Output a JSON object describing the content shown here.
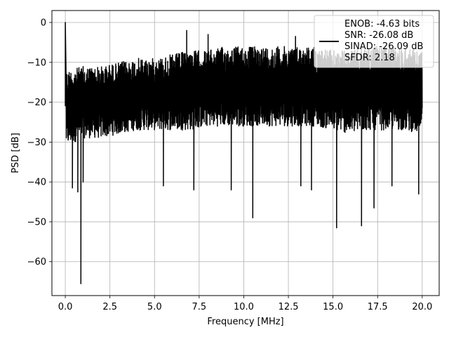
{
  "chart_data": {
    "type": "line",
    "xlabel": "Frequency [MHz]",
    "ylabel": "PSD [dB]",
    "xlim": [
      -0.75,
      20.95
    ],
    "ylim": [
      -68.5,
      3.0
    ],
    "xticks": [
      0.0,
      2.5,
      5.0,
      7.5,
      10.0,
      12.5,
      15.0,
      17.5,
      20.0
    ],
    "xtick_labels": [
      "0.0",
      "2.5",
      "5.0",
      "7.5",
      "10.0",
      "12.5",
      "15.0",
      "17.5",
      "20.0"
    ],
    "yticks": [
      0,
      -10,
      -20,
      -30,
      -40,
      -50,
      -60
    ],
    "ytick_labels": [
      "0",
      "−10",
      "−20",
      "−30",
      "−40",
      "−50",
      "−60"
    ],
    "grid": true,
    "legend_placement": "upper-right",
    "legend_lines": [
      "ENOB: -4.63 bits",
      "SNR: -26.08 dB",
      "SINAD: -26.09 dB",
      "SFDR: 2.18"
    ],
    "series": [
      {
        "color": "#000000",
        "band_envelope": {
          "x": [
            0.05,
            1.0,
            2.0,
            3.0,
            4.0,
            5.0,
            6.0,
            7.0,
            8.0,
            9.0,
            10.0,
            11.0,
            12.0,
            13.0,
            14.0,
            15.0,
            16.0,
            17.0,
            18.0,
            19.0,
            20.0
          ],
          "upper": [
            -12,
            -11,
            -11,
            -10,
            -9,
            -9,
            -8,
            -7,
            -7,
            -6,
            -6,
            -6,
            -6,
            -6,
            -6,
            -7,
            -7,
            -6,
            -6,
            -6,
            -7
          ],
          "lower": [
            -31,
            -29,
            -29,
            -28,
            -27,
            -27,
            -27,
            -27,
            -26,
            -26,
            -26,
            -26,
            -26,
            -26,
            -26,
            -27,
            -28,
            -27,
            -27,
            -27,
            -28
          ]
        },
        "peaks": [
          {
            "x": 0.0,
            "y": 0.0
          },
          {
            "x": 6.8,
            "y": -2.0
          },
          {
            "x": 8.0,
            "y": -3.0
          },
          {
            "x": 12.9,
            "y": -3.5
          }
        ],
        "dips": [
          {
            "x": 0.87,
            "y": -65.5
          },
          {
            "x": 0.7,
            "y": -42.5
          },
          {
            "x": 0.4,
            "y": -41.5
          },
          {
            "x": 1.0,
            "y": -40.0
          },
          {
            "x": 5.5,
            "y": -41.0
          },
          {
            "x": 7.2,
            "y": -42.0
          },
          {
            "x": 9.3,
            "y": -42.0
          },
          {
            "x": 10.5,
            "y": -49.0
          },
          {
            "x": 13.2,
            "y": -41.0
          },
          {
            "x": 13.8,
            "y": -42.0
          },
          {
            "x": 15.2,
            "y": -51.5
          },
          {
            "x": 16.6,
            "y": -51.0
          },
          {
            "x": 17.3,
            "y": -46.5
          },
          {
            "x": 18.3,
            "y": -41.0
          },
          {
            "x": 19.8,
            "y": -43.0
          }
        ]
      }
    ]
  }
}
